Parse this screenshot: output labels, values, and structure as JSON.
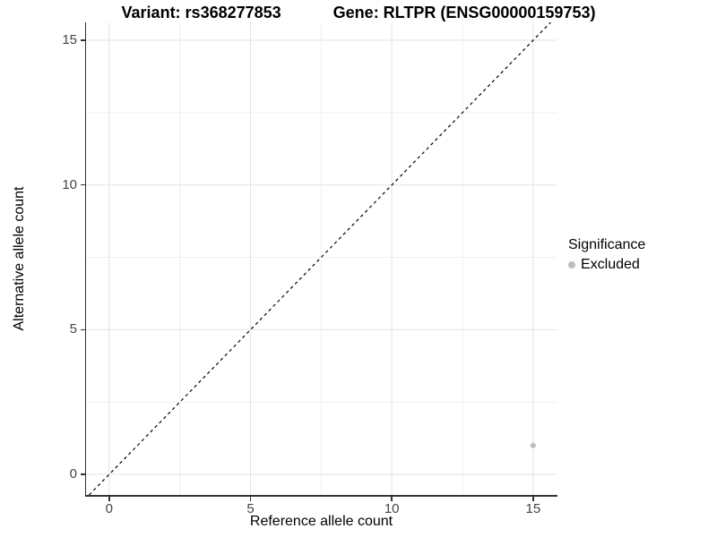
{
  "chart_data": {
    "type": "scatter",
    "titles": {
      "left": "Variant: rs368277853",
      "right": "Gene: RLTPR (ENSG00000159753)"
    },
    "xlabel": "Reference allele count",
    "ylabel": "Alternative allele count",
    "xlim": [
      -0.82,
      15.83
    ],
    "ylim": [
      -0.71,
      15.62
    ],
    "xticks": [
      0,
      5,
      10,
      15
    ],
    "yticks": [
      0,
      5,
      10,
      15
    ],
    "minor_xticks": [
      2.5,
      7.5,
      12.5
    ],
    "minor_yticks": [
      2.5,
      7.5,
      12.5
    ],
    "grid": {
      "show": true,
      "major_color": "#e3e3e3",
      "minor_color": "#f0f0f0"
    },
    "reference_line": {
      "kind": "abline",
      "slope": 1,
      "intercept": 0,
      "linestyle": "dashed",
      "color": "#000000"
    },
    "series": [
      {
        "name": "Excluded",
        "color": "#bdbdbd",
        "marker": "circle",
        "points": [
          [
            15,
            1
          ]
        ]
      }
    ],
    "legend": {
      "title": "Significance",
      "position": "right",
      "items": [
        {
          "label": "Excluded",
          "color": "#bdbdbd",
          "marker": "circle"
        }
      ]
    },
    "axis_color": "#333333",
    "tick_label_color": "#444444",
    "background": "#ffffff"
  }
}
